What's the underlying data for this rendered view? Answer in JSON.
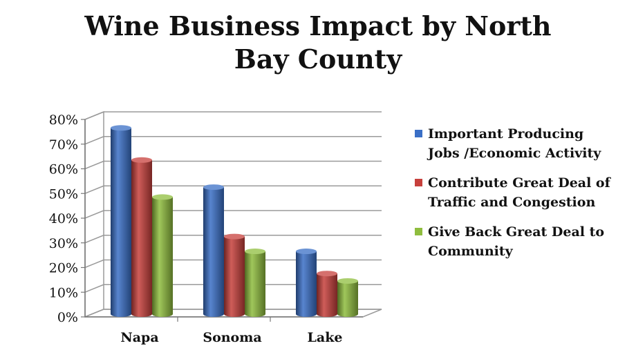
{
  "chart_data": {
    "type": "bar",
    "title_lines": [
      "Wine Business Impact by North",
      "Bay County"
    ],
    "categories": [
      "Napa",
      "Sonoma",
      "Lake"
    ],
    "series": [
      {
        "name": "Important Producing Jobs /Economic Activity",
        "values": [
          76,
          52,
          26
        ],
        "color": "#3a6fc6"
      },
      {
        "name": "Contribute Great Deal of Traffic and Congestion",
        "values": [
          63,
          32,
          17
        ],
        "color": "#c7403c"
      },
      {
        "name": "Give Back Great Deal to Community",
        "values": [
          48,
          26,
          14
        ],
        "color": "#8fbd3e"
      }
    ],
    "y_ticks": [
      "0%",
      "10%",
      "20%",
      "30%",
      "40%",
      "50%",
      "60%",
      "70%",
      "80%"
    ],
    "ylim": [
      0,
      80
    ],
    "grid": true,
    "legend_position": "right",
    "xlabel": "",
    "ylabel": ""
  }
}
